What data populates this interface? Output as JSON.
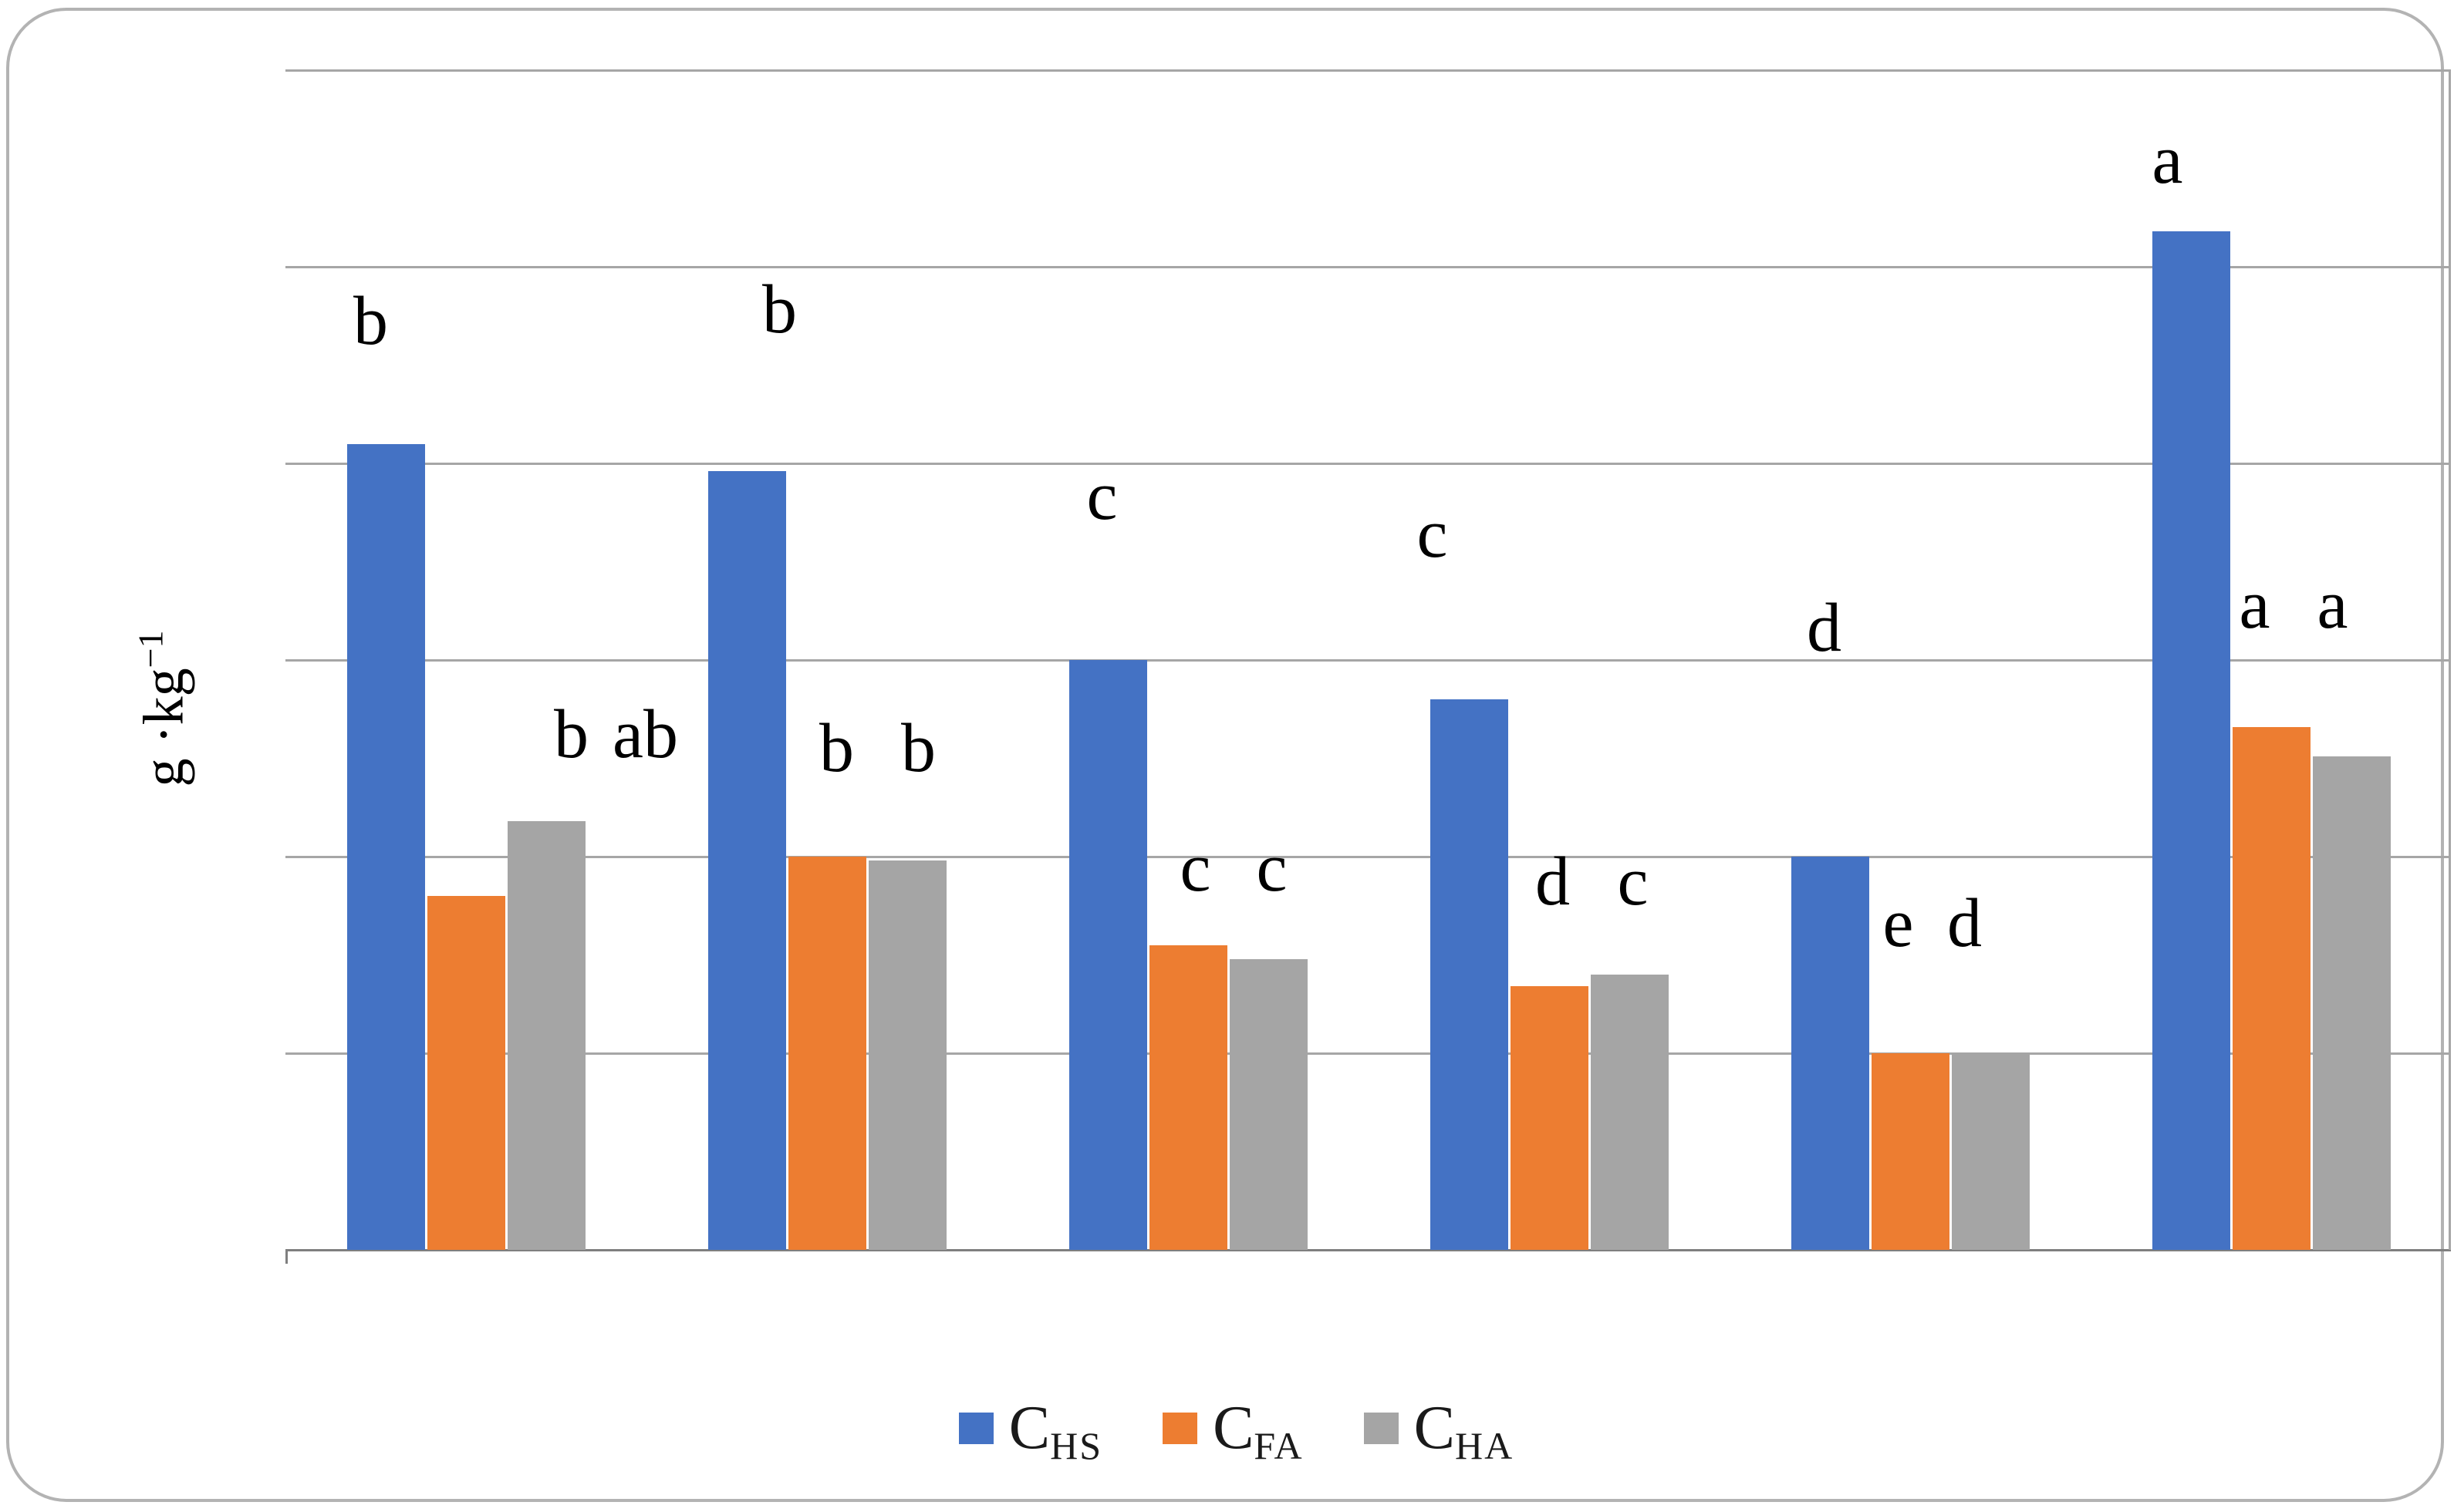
{
  "chart_data": {
    "type": "bar",
    "title": "",
    "xlabel": "",
    "ylabel": "g ·kg⁻¹",
    "ylabel_main": "g ·kg",
    "ylabel_sup": "−1",
    "ylim": [
      0,
      6
    ],
    "gridline_interval": 1,
    "gridlines_visible": 7,
    "categories": [
      "",
      "",
      "",
      "",
      "",
      ""
    ],
    "legend_position": "bottom",
    "series": [
      {
        "name": "C_HS",
        "legend_main": "C",
        "legend_sub": "HS",
        "color": "#4472c4",
        "values": [
          4.1,
          3.96,
          3.0,
          2.8,
          2.0,
          5.18
        ],
        "letters": [
          "b",
          "b",
          "c",
          "c",
          "d",
          "a"
        ],
        "letter_y": [
          4.72,
          4.78,
          3.83,
          3.64,
          3.16,
          5.54
        ],
        "letter_dx": [
          -20,
          42,
          -8,
          -48,
          -8,
          -31
        ]
      },
      {
        "name": "C_FA",
        "legend_main": "C",
        "legend_sub": "FA",
        "color": "#ed7d31",
        "values": [
          1.8,
          2.0,
          1.55,
          1.34,
          1.0,
          2.66
        ],
        "letters": [
          "b",
          "b",
          "c",
          "d",
          "e",
          "a"
        ],
        "letter_y": [
          2.62,
          2.55,
          1.94,
          1.87,
          1.66,
          3.28
        ],
        "letter_dx": [
          136,
          12,
          9,
          4,
          -16,
          -22
        ]
      },
      {
        "name": "C_HA",
        "legend_main": "C",
        "legend_sub": "HA",
        "color": "#a5a5a5",
        "values": [
          2.18,
          1.98,
          1.48,
          1.4,
          1.0,
          2.51
        ],
        "letters": [
          "ab",
          "b",
          "c",
          "c",
          "d",
          "a"
        ],
        "letter_y": [
          2.62,
          2.55,
          1.94,
          1.87,
          1.66,
          3.28
        ],
        "letter_dx": [
          128,
          14,
          4,
          4,
          -34,
          -25
        ]
      }
    ]
  }
}
